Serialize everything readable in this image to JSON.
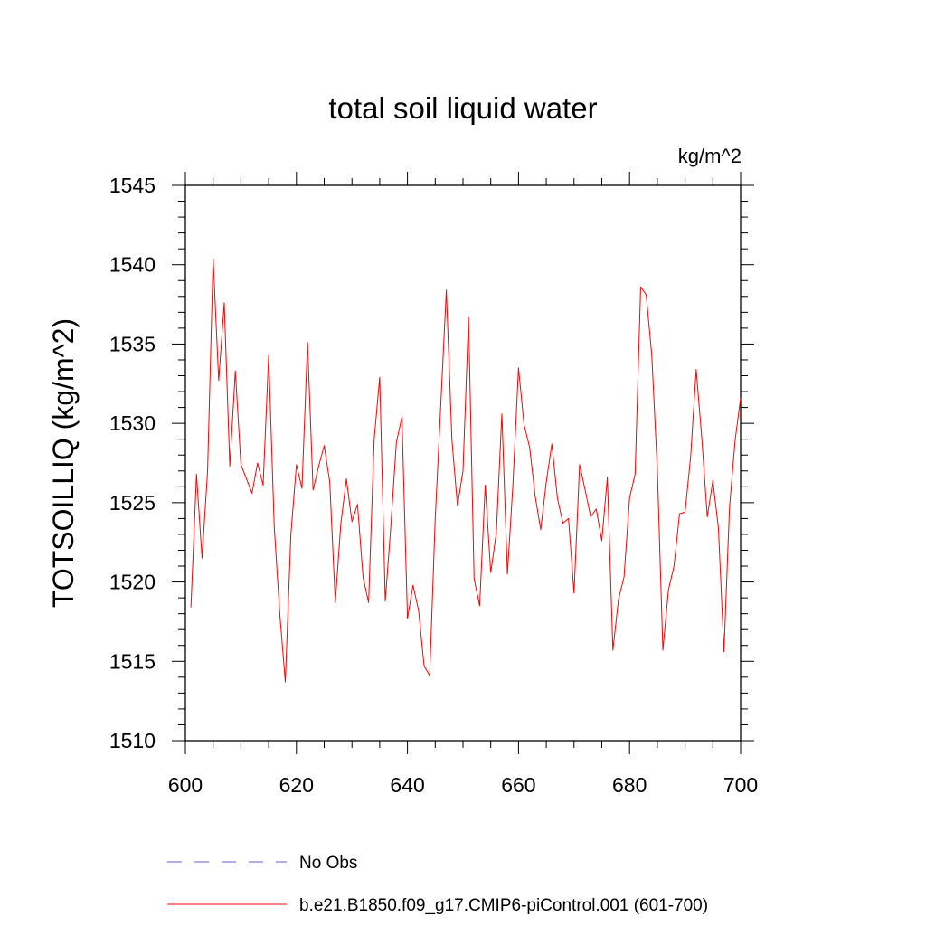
{
  "chart_data": {
    "type": "line",
    "title": "total soil liquid water",
    "units_label": "kg/m^2",
    "ylabel": "TOTSOILLIQ  (kg/m^2)",
    "xlabel": "",
    "xlim": [
      600,
      700
    ],
    "ylim": [
      1510,
      1545
    ],
    "x_ticks": [
      "600",
      "620",
      "640",
      "660",
      "680",
      "700"
    ],
    "y_ticks": [
      "1510",
      "1515",
      "1520",
      "1525",
      "1530",
      "1535",
      "1540",
      "1545"
    ],
    "x_tick_values": [
      600,
      620,
      640,
      660,
      680,
      700
    ],
    "y_tick_values": [
      1510,
      1515,
      1520,
      1525,
      1530,
      1535,
      1540,
      1545
    ],
    "grid": false,
    "series": [
      {
        "name": "b.e21.B1850.f09_g17.CMIP6-piControl.001 (601-700)",
        "color": "#ff0000",
        "style": "solid",
        "x": [
          601,
          602,
          603,
          604,
          605,
          606,
          607,
          608,
          609,
          610,
          611,
          612,
          613,
          614,
          615,
          616,
          617,
          618,
          619,
          620,
          621,
          622,
          623,
          624,
          625,
          626,
          627,
          628,
          629,
          630,
          631,
          632,
          633,
          634,
          635,
          636,
          637,
          638,
          639,
          640,
          641,
          642,
          643,
          644,
          645,
          646,
          647,
          648,
          649,
          650,
          651,
          652,
          653,
          654,
          655,
          656,
          657,
          658,
          659,
          660,
          661,
          662,
          663,
          664,
          665,
          666,
          667,
          668,
          669,
          670,
          671,
          672,
          673,
          674,
          675,
          676,
          677,
          678,
          679,
          680,
          681,
          682,
          683,
          684,
          685,
          686,
          687,
          688,
          689,
          690,
          691,
          692,
          693,
          694,
          695,
          696,
          697,
          698,
          699,
          700
        ],
        "values": [
          1518.4,
          1526.8,
          1521.5,
          1527.0,
          1540.4,
          1532.7,
          1537.6,
          1527.3,
          1533.3,
          1527.4,
          1526.5,
          1525.6,
          1527.5,
          1526.1,
          1534.3,
          1523.5,
          1518.0,
          1513.7,
          1523.0,
          1527.4,
          1525.9,
          1535.1,
          1525.8,
          1527.3,
          1528.6,
          1526.3,
          1518.7,
          1523.7,
          1526.5,
          1523.8,
          1524.9,
          1520.3,
          1518.7,
          1529.0,
          1532.9,
          1518.8,
          1523.5,
          1528.8,
          1530.4,
          1517.7,
          1519.8,
          1518.2,
          1514.7,
          1514.1,
          1524.0,
          1531.2,
          1538.4,
          1529.0,
          1524.8,
          1527.0,
          1536.7,
          1520.2,
          1518.5,
          1526.1,
          1520.6,
          1523.1,
          1530.6,
          1520.5,
          1526.2,
          1533.5,
          1529.9,
          1528.5,
          1525.4,
          1523.3,
          1526.3,
          1528.7,
          1525.3,
          1523.7,
          1524.0,
          1519.3,
          1527.4,
          1525.8,
          1524.1,
          1524.6,
          1522.6,
          1526.6,
          1515.7,
          1518.9,
          1520.3,
          1525.3,
          1526.8,
          1538.6,
          1538.1,
          1534.3,
          1527.1,
          1515.7,
          1519.5,
          1521.0,
          1524.3,
          1524.4,
          1527.9,
          1533.4,
          1529.1,
          1524.1,
          1526.4,
          1523.4,
          1515.6,
          1524.7,
          1528.9,
          1531.6
        ]
      },
      {
        "name": "No Obs",
        "color": "#6a5acd",
        "style": "dashed",
        "x": [],
        "values": []
      }
    ],
    "legend": [
      {
        "label": "No Obs",
        "color": "#6a5acd",
        "style": "dashed"
      },
      {
        "label": "b.e21.B1850.f09_g17.CMIP6-piControl.001 (601-700)",
        "color": "#ff0000",
        "style": "solid"
      }
    ]
  }
}
